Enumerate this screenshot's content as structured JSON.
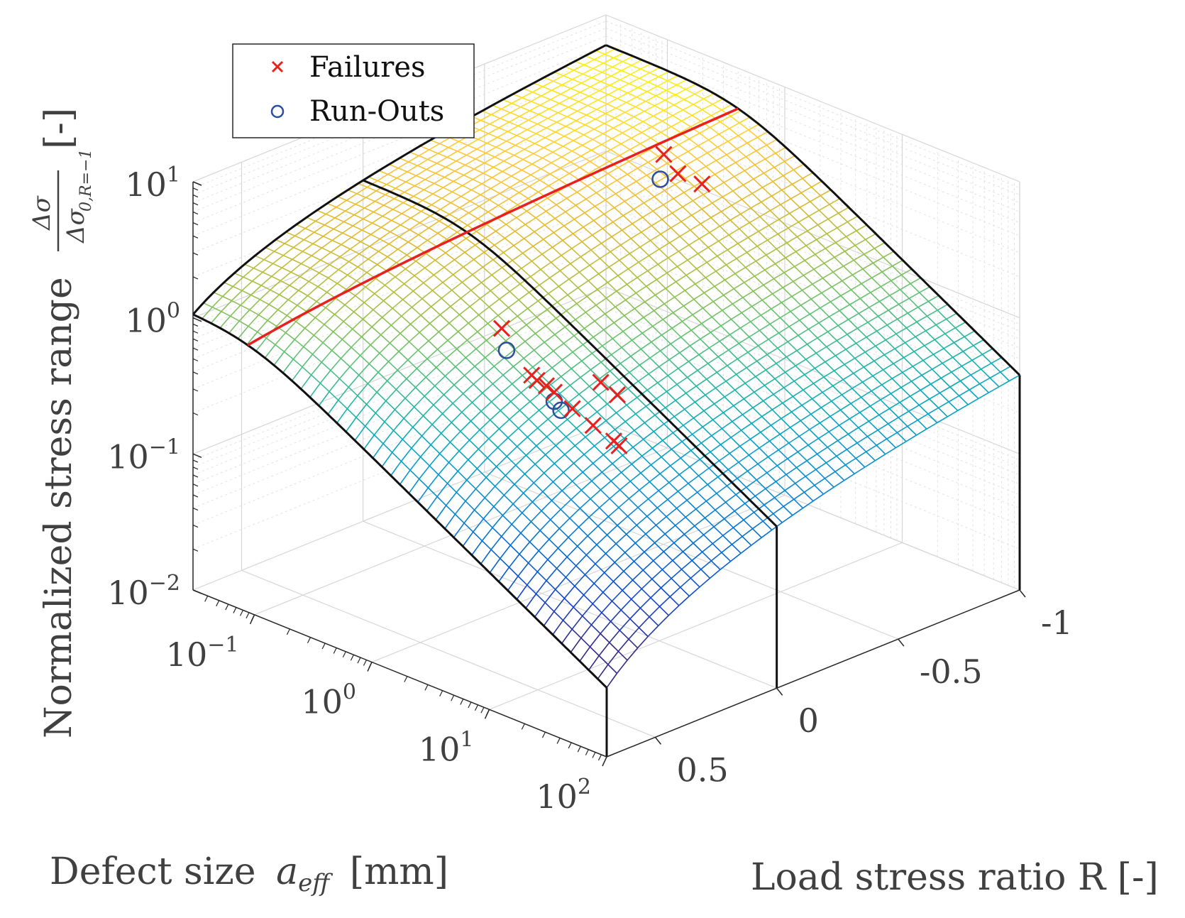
{
  "chart_data": {
    "type": "surface3d",
    "title": "",
    "xlabel": "Defect size a_eff [mm]",
    "xlabel_main": "Defect size",
    "xlabel_var": "a",
    "xlabel_sub": "eff",
    "xlabel_unit": "[mm]",
    "ylabel": "Load stress ratio R [-]",
    "zlabel": "Normalized stress range Δσ/Δσ0,R=−1 [-]",
    "zlabel_main": "Normalized stress range",
    "zlabel_num": "Δσ",
    "zlabel_den": "Δσ",
    "zlabel_den_sub": "0,R=−1",
    "zlabel_unit": "[-]",
    "x_scale": "log",
    "z_scale": "log",
    "xlim": [
      0.03,
      100
    ],
    "ylim": [
      -1,
      0.7
    ],
    "zlim": [
      0.01,
      10
    ],
    "x_ticks": [
      {
        "value": 0.1,
        "base": "10",
        "exp": "−1"
      },
      {
        "value": 1,
        "base": "10",
        "exp": "0"
      },
      {
        "value": 10,
        "base": "10",
        "exp": "1"
      },
      {
        "value": 100,
        "base": "10",
        "exp": "2"
      }
    ],
    "y_ticks": [
      {
        "value": -1,
        "label": "-1"
      },
      {
        "value": -0.5,
        "label": "-0.5"
      },
      {
        "value": 0,
        "label": "0"
      },
      {
        "value": 0.5,
        "label": "0.5"
      }
    ],
    "z_ticks": [
      {
        "value": 0.01,
        "base": "10",
        "exp": "−2"
      },
      {
        "value": 0.1,
        "base": "10",
        "exp": "−1"
      },
      {
        "value": 1,
        "base": "10",
        "exp": "0"
      },
      {
        "value": 10,
        "base": "10",
        "exp": "1"
      }
    ],
    "legend": {
      "location": "top-left",
      "entries": [
        {
          "label": "Failures",
          "marker": "x",
          "color": "#e8201e"
        },
        {
          "label": "Run-Outs",
          "marker": "o",
          "color": "#2c4ea0"
        }
      ]
    },
    "surface_model": {
      "description": "Kitagawa-type surface: plateau below threshold defect size, slope -1/2 above; decreasing with R",
      "a_threshold_mm": 0.4,
      "crack_slope": -0.5,
      "colormap": "parula",
      "color_limits": [
        0.05,
        6.5
      ]
    },
    "surface_edges": {
      "R_edge_front_R": 0.7,
      "R_edge_back_R": -1,
      "reference_line_R": 0,
      "highlight_line": {
        "description": "threshold transition curve",
        "color": "#e8201e"
      }
    },
    "failures": [
      {
        "a": 0.5,
        "R": 0.02,
        "S": 0.72
      },
      {
        "a": 0.9,
        "R": 0.02,
        "S": 0.4
      },
      {
        "a": 1.0,
        "R": 0.02,
        "S": 0.38
      },
      {
        "a": 1.2,
        "R": 0.02,
        "S": 0.37
      },
      {
        "a": 1.4,
        "R": 0.02,
        "S": 0.35
      },
      {
        "a": 2.0,
        "R": 0.02,
        "S": 0.3
      },
      {
        "a": 3.0,
        "R": 0.02,
        "S": 0.26
      },
      {
        "a": 4.5,
        "R": 0.02,
        "S": 0.23
      },
      {
        "a": 5.0,
        "R": 0.02,
        "S": 0.22
      },
      {
        "a": 2.5,
        "R": -0.05,
        "S": 0.45
      },
      {
        "a": 3.0,
        "R": -0.08,
        "S": 0.37
      },
      {
        "a": 0.15,
        "R": -0.9,
        "S": 1.95
      },
      {
        "a": 0.18,
        "R": -0.92,
        "S": 1.45
      },
      {
        "a": 0.25,
        "R": -0.95,
        "S": 1.3
      }
    ],
    "runouts": [
      {
        "a": 0.5,
        "R": 0.0,
        "S": 0.48
      },
      {
        "a": 1.4,
        "R": 0.02,
        "S": 0.3
      },
      {
        "a": 1.6,
        "R": 0.02,
        "S": 0.27
      },
      {
        "a": 0.14,
        "R": -0.9,
        "S": 1.25
      }
    ]
  },
  "colors": {
    "axis": "#262626",
    "grid": "#d6d6d6",
    "edge_line": "#111111",
    "highlight": "#e8201e",
    "failure": "#e8201e",
    "runout": "#2c4ea0"
  }
}
